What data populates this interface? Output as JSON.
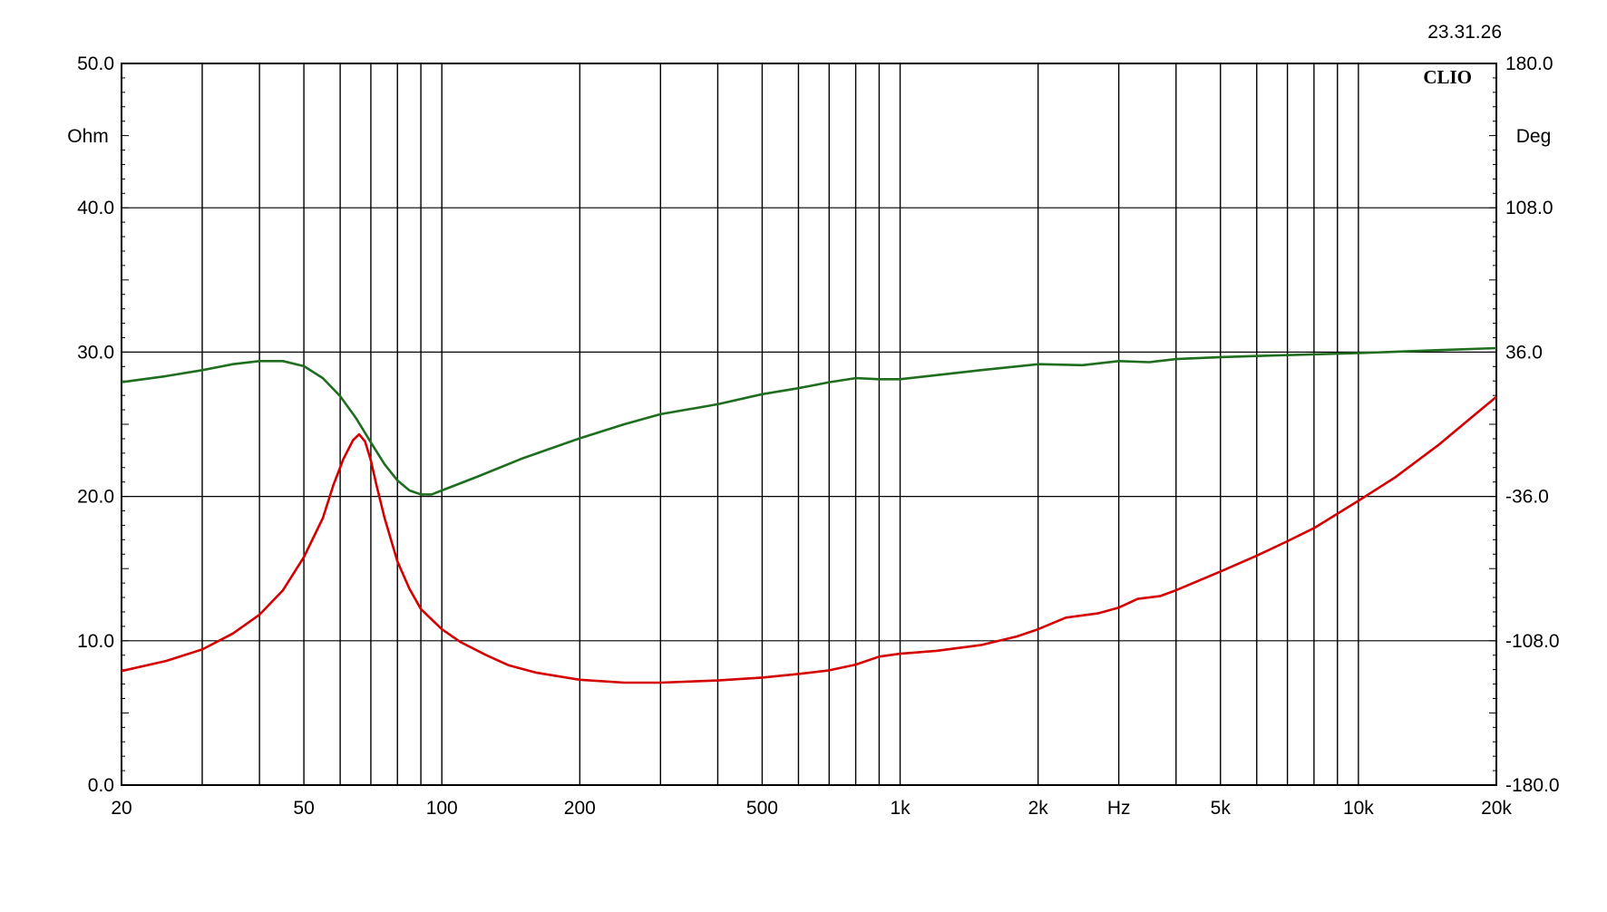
{
  "timestamp": "23.31.26",
  "brand": "CLIO",
  "chart_data": {
    "type": "line",
    "x_scale": "log",
    "xlim": [
      20,
      20000
    ],
    "grid": true,
    "x_label": "Hz",
    "y_left": {
      "label": "Ohm",
      "lim": [
        0,
        50
      ],
      "ticks": [
        "0.0",
        "10.0",
        "20.0",
        "30.0",
        "40.0",
        "50.0"
      ]
    },
    "y_right": {
      "label": "Deg",
      "lim": [
        -180,
        180
      ],
      "ticks": [
        "-180.0",
        "-108.0",
        "-36.0",
        "36.0",
        "108.0",
        "180.0"
      ]
    },
    "x_ticks": [
      {
        "value": 20,
        "label": "20"
      },
      {
        "value": 50,
        "label": "50"
      },
      {
        "value": 100,
        "label": "100"
      },
      {
        "value": 200,
        "label": "200"
      },
      {
        "value": 500,
        "label": "500"
      },
      {
        "value": 1000,
        "label": "1k"
      },
      {
        "value": 2000,
        "label": "2k"
      },
      {
        "value": 5000,
        "label": "5k"
      },
      {
        "value": 10000,
        "label": "10k"
      },
      {
        "value": 20000,
        "label": "20k"
      }
    ],
    "series": [
      {
        "axis": "left",
        "color": "#d40000",
        "points": [
          [
            20,
            7.9
          ],
          [
            25,
            8.6
          ],
          [
            30,
            9.4
          ],
          [
            35,
            10.5
          ],
          [
            40,
            11.8
          ],
          [
            45,
            13.5
          ],
          [
            50,
            15.8
          ],
          [
            55,
            18.5
          ],
          [
            58,
            20.8
          ],
          [
            61,
            22.6
          ],
          [
            64,
            23.9
          ],
          [
            66,
            24.3
          ],
          [
            68,
            23.8
          ],
          [
            70,
            22.5
          ],
          [
            72,
            20.8
          ],
          [
            75,
            18.5
          ],
          [
            80,
            15.5
          ],
          [
            85,
            13.6
          ],
          [
            90,
            12.2
          ],
          [
            100,
            10.8
          ],
          [
            110,
            9.9
          ],
          [
            125,
            9.0
          ],
          [
            140,
            8.3
          ],
          [
            160,
            7.8
          ],
          [
            200,
            7.3
          ],
          [
            250,
            7.1
          ],
          [
            300,
            7.1
          ],
          [
            400,
            7.25
          ],
          [
            500,
            7.45
          ],
          [
            600,
            7.7
          ],
          [
            700,
            7.95
          ],
          [
            800,
            8.35
          ],
          [
            900,
            8.9
          ],
          [
            1000,
            9.1
          ],
          [
            1200,
            9.3
          ],
          [
            1500,
            9.7
          ],
          [
            1800,
            10.3
          ],
          [
            2000,
            10.8
          ],
          [
            2300,
            11.6
          ],
          [
            2700,
            11.9
          ],
          [
            3000,
            12.3
          ],
          [
            3300,
            12.9
          ],
          [
            3700,
            13.1
          ],
          [
            4000,
            13.5
          ],
          [
            5000,
            14.8
          ],
          [
            6000,
            15.9
          ],
          [
            7000,
            16.9
          ],
          [
            8000,
            17.8
          ],
          [
            10000,
            19.7
          ],
          [
            12000,
            21.3
          ],
          [
            15000,
            23.6
          ],
          [
            18000,
            25.7
          ],
          [
            20000,
            26.9
          ]
        ]
      },
      {
        "axis": "right",
        "color": "#1f6e1f",
        "points": [
          [
            20,
            21
          ],
          [
            25,
            24
          ],
          [
            30,
            27
          ],
          [
            35,
            30
          ],
          [
            40,
            31.5
          ],
          [
            45,
            31.5
          ],
          [
            50,
            29
          ],
          [
            55,
            23
          ],
          [
            60,
            14
          ],
          [
            65,
            3
          ],
          [
            70,
            -9
          ],
          [
            75,
            -20
          ],
          [
            80,
            -28
          ],
          [
            85,
            -33
          ],
          [
            90,
            -35
          ],
          [
            95,
            -35
          ],
          [
            100,
            -33
          ],
          [
            120,
            -26
          ],
          [
            150,
            -17
          ],
          [
            200,
            -7
          ],
          [
            250,
            0
          ],
          [
            300,
            5
          ],
          [
            400,
            10
          ],
          [
            500,
            15
          ],
          [
            600,
            18
          ],
          [
            700,
            21
          ],
          [
            800,
            23
          ],
          [
            900,
            22.5
          ],
          [
            1000,
            22.5
          ],
          [
            1200,
            24.5
          ],
          [
            1500,
            27
          ],
          [
            2000,
            30
          ],
          [
            2500,
            29.5
          ],
          [
            3000,
            31.5
          ],
          [
            3500,
            31
          ],
          [
            4000,
            32.5
          ],
          [
            5000,
            33.5
          ],
          [
            7000,
            34.5
          ],
          [
            10000,
            35.5
          ],
          [
            15000,
            37
          ],
          [
            20000,
            38
          ]
        ]
      }
    ]
  }
}
